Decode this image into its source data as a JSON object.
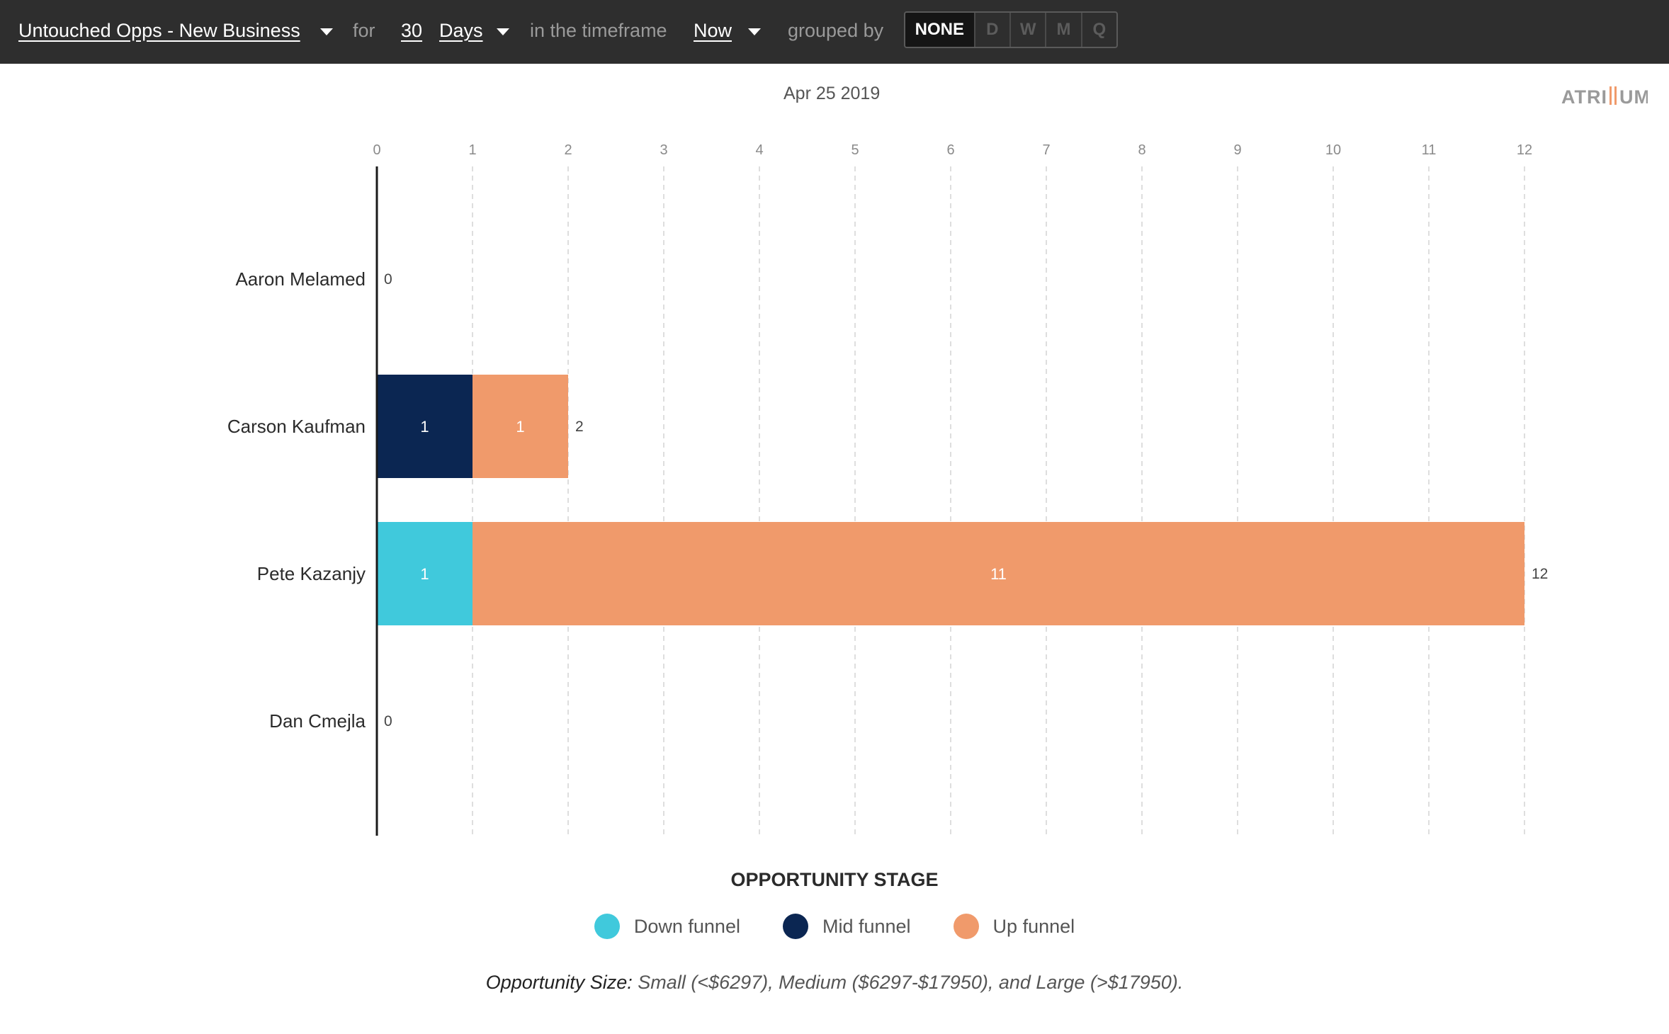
{
  "toolbar": {
    "report_name": "Untouched Opps - New Business",
    "for_label": "for",
    "period_value": "30",
    "period_unit": "Days",
    "timeframe_label": "in the timeframe",
    "timeframe_value": "Now",
    "grouped_label": "grouped by",
    "group_options": [
      "NONE",
      "D",
      "W",
      "M",
      "Q"
    ],
    "group_selected": "NONE"
  },
  "header": {
    "date": "Apr 25 2019",
    "brand": "ATRIUM"
  },
  "colors": {
    "down_funnel": "#40c9dc",
    "mid_funnel": "#0b2652",
    "up_funnel": "#f09a6b"
  },
  "chart_data": {
    "type": "bar",
    "orientation": "horizontal",
    "stacked": true,
    "categories": [
      "Aaron Melamed",
      "Carson Kaufman",
      "Pete Kazanjy",
      "Dan Cmejla"
    ],
    "series": [
      {
        "name": "Down funnel",
        "values": [
          0,
          0,
          1,
          0
        ]
      },
      {
        "name": "Mid funnel",
        "values": [
          0,
          1,
          0,
          0
        ]
      },
      {
        "name": "Up funnel",
        "values": [
          0,
          1,
          11,
          0
        ]
      }
    ],
    "totals": [
      0,
      2,
      12,
      0
    ],
    "xlim": [
      0,
      12
    ],
    "x_ticks": [
      0,
      1,
      2,
      3,
      4,
      5,
      6,
      7,
      8,
      9,
      10,
      11,
      12
    ],
    "grid": "vertical-dashed"
  },
  "legend": {
    "title": "OPPORTUNITY STAGE",
    "items": [
      "Down funnel",
      "Mid funnel",
      "Up funnel"
    ]
  },
  "footnote": {
    "label": "Opportunity Size:",
    "text": " Small (<$6297), Medium ($6297-$17950), and Large (>$17950)."
  }
}
